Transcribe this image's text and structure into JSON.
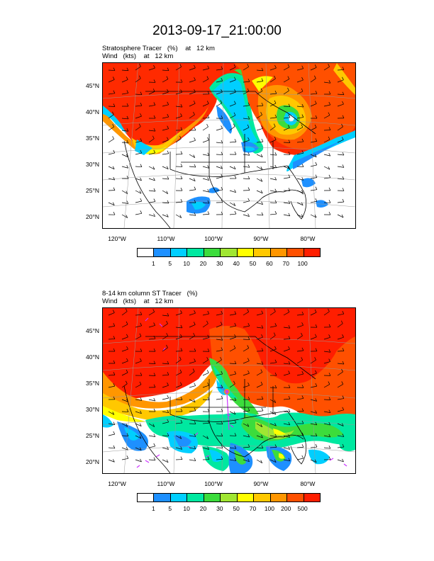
{
  "title": "2013-09-17_21:00:00",
  "panels": [
    {
      "subtitle_line1": "Stratosphere Tracer   (%)    at   12 km",
      "subtitle_line2": "Wind   (kts)    at   12 km",
      "lat_labels": [
        "45°N",
        "40°N",
        "35°N",
        "30°N",
        "25°N",
        "20°N"
      ],
      "lon_labels": [
        "120°W",
        "110°W",
        "100°W",
        "90°W",
        "80°W"
      ],
      "colorbar_labels": [
        "1",
        "5",
        "10",
        "20",
        "30",
        "40",
        "50",
        "60",
        "70",
        "100"
      ]
    },
    {
      "subtitle_line1": "8-14 km column ST Tracer   (%)",
      "subtitle_line2": "Wind   (kts)    at   12 km",
      "lat_labels": [
        "45°N",
        "40°N",
        "35°N",
        "30°N",
        "25°N",
        "20°N"
      ],
      "lon_labels": [
        "120°W",
        "110°W",
        "100°W",
        "90°W",
        "80°W"
      ],
      "colorbar_labels": [
        "1",
        "5",
        "10",
        "20",
        "30",
        "50",
        "70",
        "100",
        "200",
        "500"
      ]
    }
  ],
  "colors": [
    "#ffffff",
    "#1e90ff",
    "#00cfff",
    "#00e8a0",
    "#3cdc3c",
    "#a0e632",
    "#ffff00",
    "#ffc800",
    "#ff9600",
    "#ff5000",
    "#ff1e00"
  ]
}
